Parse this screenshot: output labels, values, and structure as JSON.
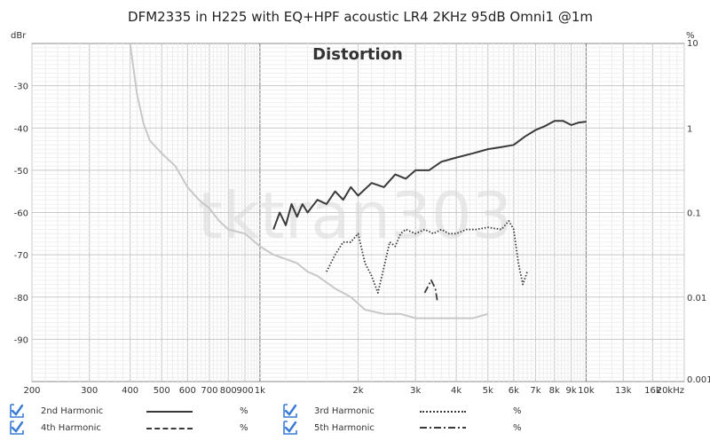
{
  "chart_data": {
    "type": "line",
    "title": "DFM2335 in H225 with EQ+HPF acoustic LR4 2KHz 95dB Omni1 @1m",
    "inner_title": "Distortion",
    "watermark": "tktran303",
    "left_axis_unit": "dBr",
    "right_axis_unit": "%",
    "xscale": "log",
    "xlim": [
      200,
      20000
    ],
    "ylim_left": [
      -100,
      -20
    ],
    "ylim_right": [
      0.001,
      10
    ],
    "x_ticks": [
      200,
      300,
      400,
      500,
      600,
      700,
      800,
      900,
      1000,
      2000,
      3000,
      4000,
      5000,
      6000,
      7000,
      8000,
      9000,
      10000,
      13000,
      16000,
      20000
    ],
    "x_tick_labels": [
      "200",
      "300",
      "400",
      "500",
      "600",
      "700",
      "800",
      "900",
      "1k",
      "2k",
      "3k",
      "4k",
      "5k",
      "6k",
      "7k",
      "8k",
      "9k",
      "10k",
      "13k",
      "16k",
      "20kHz"
    ],
    "y_left_ticks": [
      -30,
      -40,
      -50,
      -60,
      -70,
      -80,
      -90
    ],
    "y_left_tick_labels": [
      "-30",
      "-40",
      "-50",
      "-60",
      "-70",
      "-80",
      "-90"
    ],
    "y_right_ticks": [
      10,
      1,
      0.1,
      0.01,
      0.001
    ],
    "y_right_tick_labels": [
      "10",
      "1",
      "0.1",
      "0.01",
      "0.001"
    ],
    "grid": true,
    "series": [
      {
        "name": "2nd Harmonic",
        "unit": "%",
        "color": "#3a3a3a",
        "style": "solid",
        "x": [
          1100,
          1150,
          1200,
          1250,
          1300,
          1350,
          1400,
          1500,
          1600,
          1700,
          1800,
          1900,
          2000,
          2200,
          2400,
          2600,
          2800,
          3000,
          3300,
          3600,
          4000,
          4500,
          5000,
          5500,
          6000,
          6500,
          7000,
          7500,
          8000,
          8500,
          9000,
          9500,
          10000
        ],
        "y": [
          -64,
          -60,
          -63,
          -58,
          -61,
          -58,
          -60,
          -57,
          -58,
          -55,
          -57,
          -54,
          -56,
          -53,
          -54,
          -51,
          -52,
          -50,
          -50,
          -48,
          -47,
          -46,
          -45,
          -44.5,
          -44,
          -42,
          -40.5,
          -39.5,
          -38.3,
          -38.3,
          -39.3,
          -38.7,
          -38.5
        ]
      },
      {
        "name": "3rd Harmonic",
        "unit": "%",
        "color": "#3a3a3a",
        "style": "dotted",
        "x": [
          1600,
          1700,
          1800,
          1900,
          2000,
          2100,
          2200,
          2300,
          2400,
          2500,
          2600,
          2700,
          2800,
          3000,
          3200,
          3400,
          3600,
          3800,
          4000,
          4300,
          4600,
          5000,
          5500,
          5800,
          6000,
          6200,
          6400,
          6600
        ],
        "y": [
          -74,
          -70,
          -67,
          -67,
          -65,
          -72,
          -75,
          -79,
          -73,
          -67,
          -68,
          -65,
          -64,
          -65,
          -64,
          -65,
          -64,
          -65,
          -65,
          -64,
          -64,
          -63.5,
          -64,
          -62,
          -64,
          -72,
          -77,
          -74
        ]
      },
      {
        "name": "4th Harmonic",
        "unit": "%",
        "color": "#c8c8c8",
        "style": "solid",
        "x": [
          400,
          420,
          440,
          460,
          500,
          550,
          600,
          650,
          700,
          750,
          800,
          900,
          1000,
          1100,
          1200,
          1300,
          1400,
          1500,
          1700,
          1900,
          2100,
          2400,
          2700,
          3000,
          3300,
          3600,
          4000,
          4500,
          5000
        ],
        "y": [
          -20,
          -32,
          -39,
          -43,
          -46,
          -49,
          -54,
          -57,
          -59,
          -62,
          -64,
          -65,
          -68,
          -70,
          -71,
          -72,
          -74,
          -75,
          -78,
          -80,
          -83,
          -84,
          -84,
          -85,
          -85,
          -85,
          -85,
          -85,
          -84
        ]
      },
      {
        "name": "5th Harmonic",
        "unit": "%",
        "color": "#3a3a3a",
        "style": "dashdot",
        "x": [
          3200,
          3250,
          3300,
          3350,
          3400,
          3450,
          3500
        ],
        "y": [
          -79,
          -78,
          -77,
          -76,
          -77,
          -78,
          -81
        ]
      }
    ]
  },
  "legend": {
    "items": [
      {
        "label": "2nd Harmonic",
        "unit": "%"
      },
      {
        "label": "3rd Harmonic",
        "unit": "%"
      },
      {
        "label": "4th Harmonic",
        "unit": "%"
      },
      {
        "label": "5th Harmonic",
        "unit": "%"
      }
    ]
  }
}
